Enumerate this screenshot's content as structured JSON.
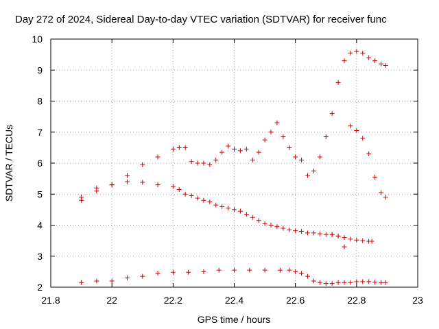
{
  "chart_data": {
    "type": "scatter",
    "title": "Day 272 of 2024, Sidereal Day-to-day VTEC variation (SDTVAR) for receiver func",
    "xlabel": "GPS time / hours",
    "ylabel": "SDTVAR / TECUs",
    "xlim": [
      21.8,
      23
    ],
    "ylim": [
      2,
      10
    ],
    "x_ticks": [
      21.8,
      22,
      22.2,
      22.4,
      22.6,
      22.8,
      23
    ],
    "x_tick_labels": [
      "21.8",
      "22",
      "22.2",
      "22.4",
      "22.6",
      "22.8",
      "23"
    ],
    "y_ticks": [
      2,
      3,
      4,
      5,
      6,
      7,
      8,
      9,
      10
    ],
    "y_tick_labels": [
      "2",
      "3",
      "4",
      "5",
      "6",
      "7",
      "8",
      "9",
      "10"
    ],
    "grid": true,
    "marker": "plus",
    "marker_color": "#cc0000",
    "series": [
      {
        "name": "series-1",
        "x": [
          21.9,
          21.95,
          22.0,
          22.05,
          22.1,
          22.15,
          22.2,
          22.22,
          22.24,
          22.26,
          22.28,
          22.3,
          22.32,
          22.34,
          22.36,
          22.38,
          22.4,
          22.42,
          22.44,
          22.46,
          22.48,
          22.5,
          22.52,
          22.54,
          22.56,
          22.58,
          22.6,
          22.62,
          22.64,
          22.66,
          22.68,
          22.7,
          22.72,
          22.74,
          22.76,
          22.78,
          22.8,
          22.82,
          22.84,
          22.86,
          22.88,
          22.895
        ],
        "y": [
          4.8,
          5.2,
          5.3,
          5.6,
          5.95,
          6.2,
          6.45,
          6.5,
          6.5,
          6.05,
          6.0,
          6.0,
          5.95,
          6.1,
          6.35,
          6.55,
          6.45,
          6.4,
          6.45,
          6.1,
          6.35,
          6.75,
          7.0,
          7.3,
          6.85,
          6.5,
          6.2,
          6.1,
          5.6,
          5.75,
          6.2,
          6.85,
          7.6,
          8.6,
          9.3,
          9.55,
          9.6,
          9.55,
          9.4,
          9.3,
          9.2,
          9.15
        ]
      },
      {
        "name": "series-2",
        "x": [
          21.9,
          21.95,
          22.0,
          22.05,
          22.1,
          22.15,
          22.2,
          22.22,
          22.24,
          22.26,
          22.28,
          22.3,
          22.32,
          22.34,
          22.36,
          22.38,
          22.4,
          22.42,
          22.44,
          22.46,
          22.48,
          22.5,
          22.52,
          22.54,
          22.56,
          22.58,
          22.6,
          22.62,
          22.64,
          22.66,
          22.68,
          22.7,
          22.72,
          22.74,
          22.76,
          22.78,
          22.8,
          22.82,
          22.84,
          22.86,
          22.88,
          22.895
        ],
        "y": [
          4.9,
          5.1,
          5.3,
          5.4,
          5.38,
          5.3,
          5.25,
          5.15,
          5.0,
          4.95,
          4.87,
          4.8,
          4.75,
          4.65,
          4.6,
          4.55,
          4.5,
          4.45,
          4.35,
          4.25,
          4.15,
          4.05,
          4.0,
          3.95,
          3.9,
          3.85,
          3.82,
          3.8,
          3.75,
          3.75,
          3.72,
          3.7,
          3.7,
          3.65,
          3.3,
          7.2,
          7.05,
          6.8,
          6.3,
          5.55,
          5.05,
          4.9
        ]
      },
      {
        "name": "series-3",
        "x": [
          21.9,
          21.95,
          22.0,
          22.05,
          22.1,
          22.15,
          22.2,
          22.25,
          22.3,
          22.35,
          22.4,
          22.45,
          22.5,
          22.55,
          22.58,
          22.6,
          22.62,
          22.64,
          22.66,
          22.68,
          22.7,
          22.72,
          22.74,
          22.76,
          22.78,
          22.8,
          22.82,
          22.84,
          22.86,
          22.88,
          22.895
        ],
        "y": [
          2.15,
          2.2,
          2.2,
          2.3,
          2.35,
          2.45,
          2.48,
          2.48,
          2.5,
          2.55,
          2.55,
          2.55,
          2.55,
          2.55,
          2.55,
          2.5,
          2.45,
          2.35,
          2.2,
          2.15,
          2.12,
          2.12,
          2.15,
          2.15,
          2.15,
          2.18,
          2.18,
          2.18,
          2.16,
          2.15,
          2.15
        ]
      },
      {
        "name": "series-2-tail",
        "x": [
          22.72,
          22.74,
          22.76,
          22.78,
          22.8,
          22.82,
          22.84,
          22.85
        ],
        "y": [
          3.7,
          3.65,
          3.6,
          3.55,
          3.52,
          3.5,
          3.48,
          3.48
        ]
      }
    ]
  }
}
